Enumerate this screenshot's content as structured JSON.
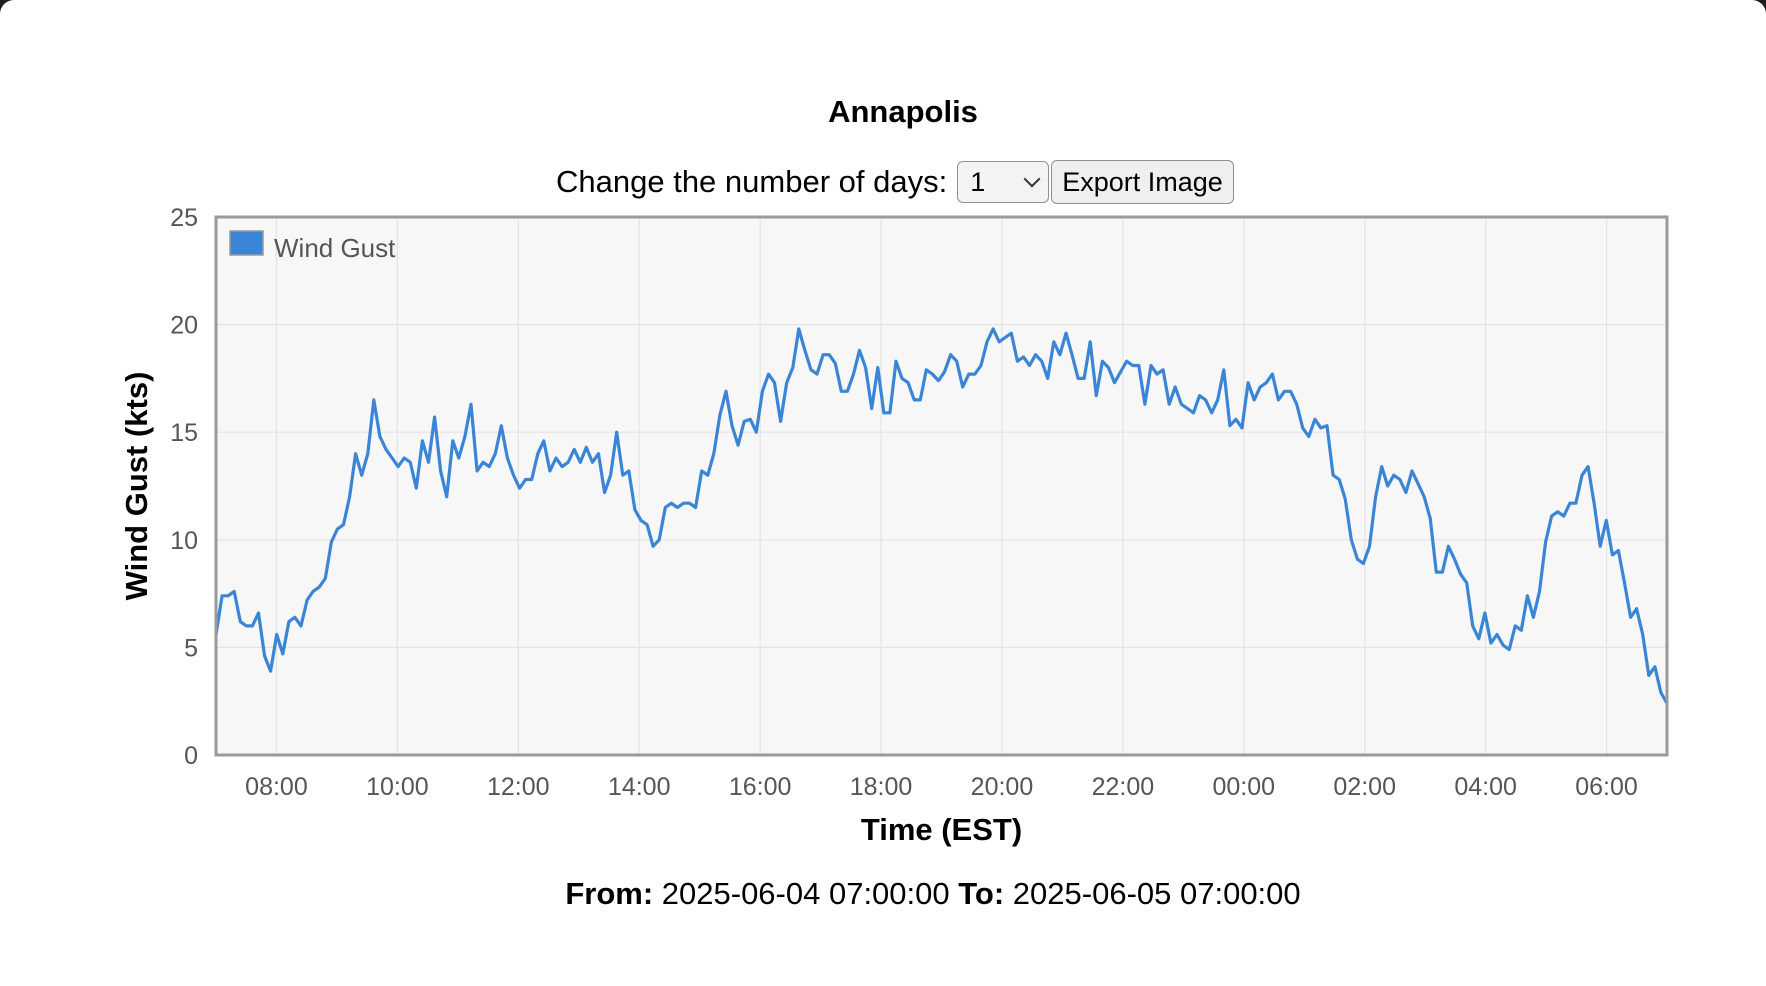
{
  "header": {
    "title": "Annapolis"
  },
  "controls": {
    "days_label": "Change the number of days:",
    "days_value": "1",
    "export_label": "Export Image"
  },
  "range": {
    "from_label": "From:",
    "from_value": "2025-06-04 07:00:00",
    "to_label": "To:",
    "to_value": "2025-06-05 07:00:00"
  },
  "colors": {
    "series": "#3a85d6",
    "plot_bg": "#f7f7f7",
    "grid": "#e3e3e3",
    "plot_border": "#9a9a9a"
  },
  "chart_data": {
    "type": "line",
    "title": "",
    "xlabel": "Time (EST)",
    "ylabel": "Wind Gust (kts)",
    "xlim": [
      "2025-06-04 07:00",
      "2025-06-05 07:00"
    ],
    "ylim": [
      0,
      25
    ],
    "yticks": [
      0,
      5,
      10,
      15,
      20,
      25
    ],
    "xticks": [
      "08:00",
      "10:00",
      "12:00",
      "14:00",
      "16:00",
      "18:00",
      "20:00",
      "22:00",
      "00:00",
      "02:00",
      "04:00",
      "06:00"
    ],
    "grid": true,
    "legend": "top-left",
    "series": [
      {
        "name": "Wind Gust",
        "color": "#3a85d6",
        "start": "2025-06-04 07:00",
        "interval_minutes": 5,
        "values": [
          5.6,
          7.4,
          7.4,
          7.6,
          6.2,
          6.0,
          6.0,
          6.6,
          4.6,
          3.9,
          5.6,
          4.7,
          6.2,
          6.4,
          6.0,
          7.2,
          7.6,
          7.8,
          8.2,
          9.9,
          10.5,
          10.7,
          12.0,
          14.0,
          13.0,
          14.0,
          16.5,
          14.8,
          14.2,
          13.8,
          13.4,
          13.8,
          13.6,
          12.4,
          14.6,
          13.6,
          15.7,
          13.2,
          12.0,
          14.6,
          13.8,
          14.8,
          16.3,
          13.2,
          13.6,
          13.4,
          14.0,
          15.3,
          13.8,
          13.0,
          12.4,
          12.8,
          12.8,
          14.0,
          14.6,
          13.2,
          13.8,
          13.4,
          13.6,
          14.2,
          13.6,
          14.3,
          13.6,
          14.0,
          12.2,
          13.0,
          15.0,
          13.0,
          13.2,
          11.4,
          10.9,
          10.7,
          9.7,
          10.0,
          11.5,
          11.7,
          11.5,
          11.7,
          11.7,
          11.5,
          13.2,
          13.0,
          14.0,
          15.8,
          16.9,
          15.3,
          14.4,
          15.5,
          15.6,
          15.0,
          16.9,
          17.7,
          17.3,
          15.5,
          17.3,
          18.0,
          19.8,
          18.8,
          17.9,
          17.7,
          18.6,
          18.6,
          18.2,
          16.9,
          16.9,
          17.7,
          18.8,
          18.0,
          16.1,
          18.0,
          15.9,
          15.9,
          18.3,
          17.5,
          17.3,
          16.5,
          16.5,
          17.9,
          17.7,
          17.4,
          17.8,
          18.6,
          18.3,
          17.1,
          17.7,
          17.7,
          18.1,
          19.2,
          19.8,
          19.2,
          19.4,
          19.6,
          18.3,
          18.5,
          18.1,
          18.6,
          18.3,
          17.5,
          19.2,
          18.6,
          19.6,
          18.6,
          17.5,
          17.5,
          19.2,
          16.7,
          18.3,
          18.0,
          17.3,
          17.8,
          18.3,
          18.1,
          18.1,
          16.3,
          18.1,
          17.7,
          17.9,
          16.3,
          17.1,
          16.3,
          16.1,
          15.9,
          16.7,
          16.5,
          15.9,
          16.5,
          17.9,
          15.3,
          15.6,
          15.2,
          17.3,
          16.5,
          17.1,
          17.3,
          17.7,
          16.5,
          16.9,
          16.9,
          16.3,
          15.2,
          14.8,
          15.6,
          15.2,
          15.3,
          13.0,
          12.8,
          11.9,
          10.0,
          9.1,
          8.9,
          9.7,
          12.0,
          13.4,
          12.5,
          13.0,
          12.8,
          12.2,
          13.2,
          12.6,
          12.0,
          11.0,
          8.5,
          8.5,
          9.7,
          9.1,
          8.4,
          8.0,
          6.0,
          5.4,
          6.6,
          5.2,
          5.6,
          5.1,
          4.9,
          6.0,
          5.8,
          7.4,
          6.4,
          7.6,
          9.9,
          11.1,
          11.3,
          11.1,
          11.7,
          11.7,
          13.0,
          13.4,
          11.7,
          9.7,
          10.9,
          9.3,
          9.5,
          8.0,
          6.4,
          6.8,
          5.6,
          3.7,
          4.1,
          2.9,
          2.4
        ]
      }
    ]
  }
}
